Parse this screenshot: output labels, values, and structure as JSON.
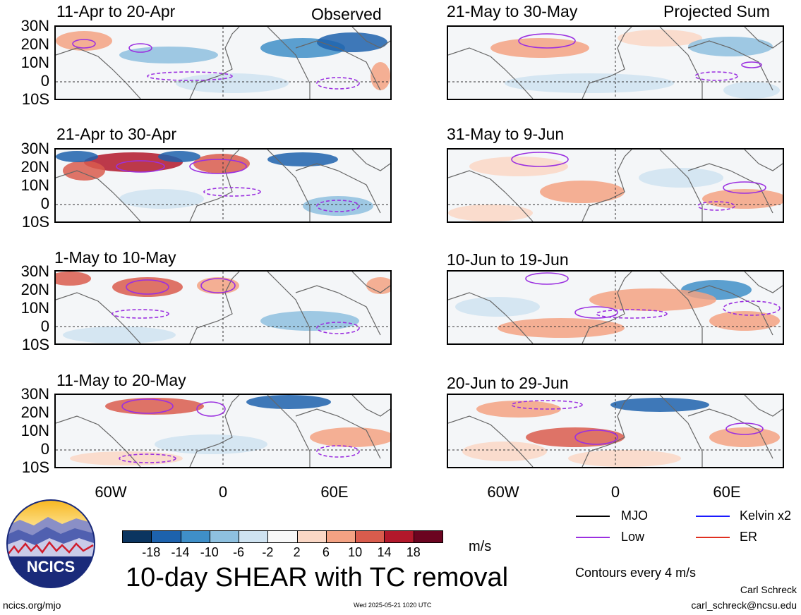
{
  "panels": {
    "p1": {
      "title": "11-Apr to 20-Apr",
      "corner": "Observed"
    },
    "p2": {
      "title": "21-Apr to 30-Apr"
    },
    "p3": {
      "title": "1-May to 10-May"
    },
    "p4": {
      "title": "11-May to 20-May"
    },
    "p5": {
      "title": "21-May to 30-May",
      "corner": "Projected Sum"
    },
    "p6": {
      "title": "31-May to 9-Jun"
    },
    "p7": {
      "title": "10-Jun to 19-Jun"
    },
    "p8": {
      "title": "20-Jun to 29-Jun"
    }
  },
  "lat_labels": [
    "30N",
    "20N",
    "10N",
    "0",
    "10S"
  ],
  "lon_labels": [
    "60W",
    "0",
    "60E"
  ],
  "colorbar": {
    "colors": [
      "#0b3560",
      "#1d62ad",
      "#3f8fc8",
      "#8ec0df",
      "#cfe3f1",
      "#f7f7f7",
      "#fad7c5",
      "#f3a283",
      "#d95c4d",
      "#b2182b",
      "#6b0420"
    ],
    "ticks": [
      "-18",
      "-14",
      "-10",
      "-6",
      "-2",
      "2",
      "6",
      "10",
      "14",
      "18"
    ],
    "unit": "m/s"
  },
  "title": "10-day SHEAR with TC removal",
  "legend": {
    "mjo": {
      "label": "MJO",
      "color": "#000000"
    },
    "kelvin": {
      "label": "Kelvin x2",
      "color": "#1a1aff"
    },
    "low": {
      "label": "Low",
      "color": "#9b30e0"
    },
    "er": {
      "label": "ER",
      "color": "#e03020"
    },
    "contours_note": "Contours every 4 m/s"
  },
  "logo": {
    "text": "NCICS"
  },
  "footer": {
    "url": "ncics.org/mjo",
    "timestamp": "Wed 2025-05-21 1020 UTC",
    "author": "Carl Schreck",
    "email": "carl_schreck@ncsu.edu"
  }
}
